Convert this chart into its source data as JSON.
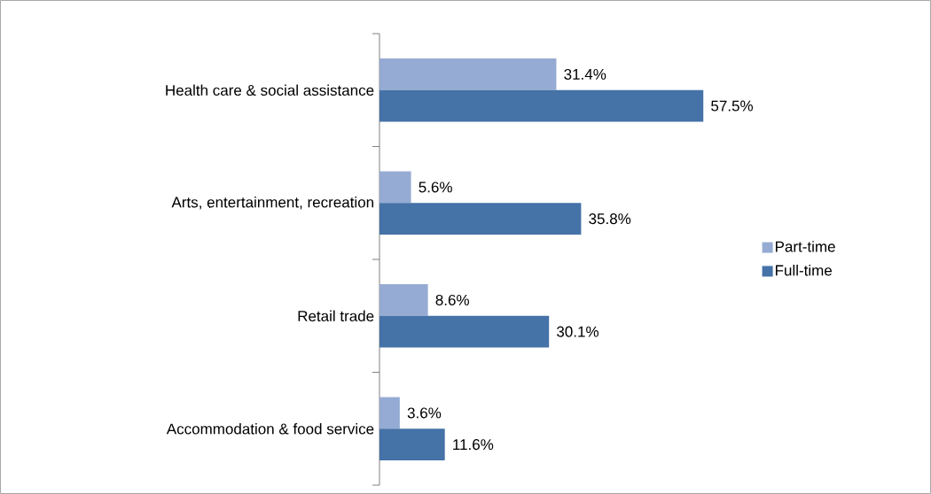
{
  "chart_data": {
    "type": "bar",
    "orientation": "horizontal",
    "categories": [
      "Health care & social assistance",
      "Arts, entertainment, recreation",
      "Retail trade",
      "Accommodation & food service"
    ],
    "series": [
      {
        "name": "Part-time",
        "color": "#95abd3",
        "values": [
          31.4,
          5.6,
          8.6,
          3.6
        ],
        "value_labels": [
          "31.4%",
          "5.6%",
          "8.6%",
          "3.6%"
        ]
      },
      {
        "name": "Full-time",
        "color": "#4572a7",
        "values": [
          57.5,
          35.8,
          30.1,
          11.6
        ],
        "value_labels": [
          "57.5%",
          "35.8%",
          "30.1%",
          "11.6%"
        ]
      }
    ],
    "legend": "right",
    "grid": false
  }
}
